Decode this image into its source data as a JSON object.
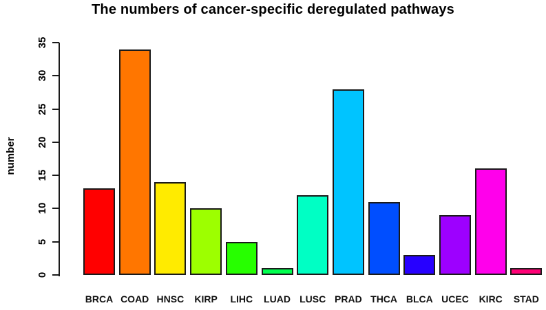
{
  "chart_data": {
    "type": "bar",
    "title": "The numbers of cancer-specific deregulated pathways",
    "xlabel": "",
    "ylabel": "number",
    "ylim": [
      0,
      35
    ],
    "yticks": [
      0,
      5,
      10,
      15,
      20,
      25,
      30,
      35
    ],
    "grid": false,
    "legend_position": "none",
    "categories": [
      "BRCA",
      "COAD",
      "HNSC",
      "KIRP",
      "LIHC",
      "LUAD",
      "LUSC",
      "PRAD",
      "THCA",
      "BLCA",
      "UCEC",
      "KIRC",
      "STAD"
    ],
    "values": [
      13,
      34,
      14,
      10,
      5,
      1,
      12,
      28,
      11,
      3,
      9,
      16,
      1
    ],
    "bar_colors": [
      "#FF0000",
      "#FF7600",
      "#FFEB00",
      "#9DFF00",
      "#27FF00",
      "#00FF4E",
      "#00FFC4",
      "#00C4FF",
      "#004EFF",
      "#2700FF",
      "#9D00FF",
      "#FF00EB",
      "#FF0076"
    ],
    "bar_border_color": "#1a1a1a",
    "axis_color": "#1a1a1a",
    "title_color": "#000000"
  }
}
